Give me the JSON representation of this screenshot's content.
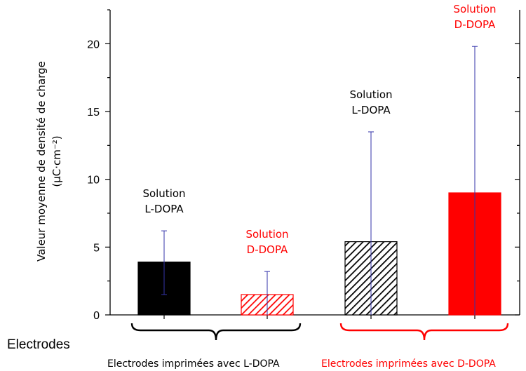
{
  "chart_data": {
    "type": "bar",
    "ylabel": "Valeur moyenne de densité de charge",
    "ylabel_unit": "(µC·cm⁻²)",
    "ylim": [
      0,
      22.5
    ],
    "yticks": [
      0,
      5,
      10,
      15,
      20
    ],
    "grid": false,
    "bars": [
      {
        "label_lines": [
          "Solution",
          "L-DOPA"
        ],
        "value": 3.9,
        "err_low": 1.5,
        "err_high": 6.2,
        "fill": "solid",
        "color": "#000000",
        "label_color": "#000000"
      },
      {
        "label_lines": [
          "Solution",
          "D-DOPA"
        ],
        "value": 1.5,
        "err_low": 0.0,
        "err_high": 3.2,
        "fill": "hatch",
        "color": "#ff0000",
        "label_color": "#ff0000"
      },
      {
        "label_lines": [
          "Solution",
          "L-DOPA"
        ],
        "value": 5.4,
        "err_low": 0.0,
        "err_high": 13.5,
        "fill": "hatch",
        "color": "#000000",
        "label_color": "#000000"
      },
      {
        "label_lines": [
          "Solution",
          "D-DOPA"
        ],
        "value": 9.0,
        "err_low": 0.0,
        "err_high": 19.8,
        "fill": "solid",
        "color": "#ff0000",
        "label_color": "#ff0000"
      }
    ],
    "groups": [
      {
        "label": "Electrodes imprimées avec L-DOPA",
        "color": "#000000"
      },
      {
        "label": "Electrodes imprimées avec D-DOPA",
        "color": "#ff0000"
      }
    ],
    "xlabel": "Electrodes",
    "errorbar_color": "#3333aa"
  }
}
